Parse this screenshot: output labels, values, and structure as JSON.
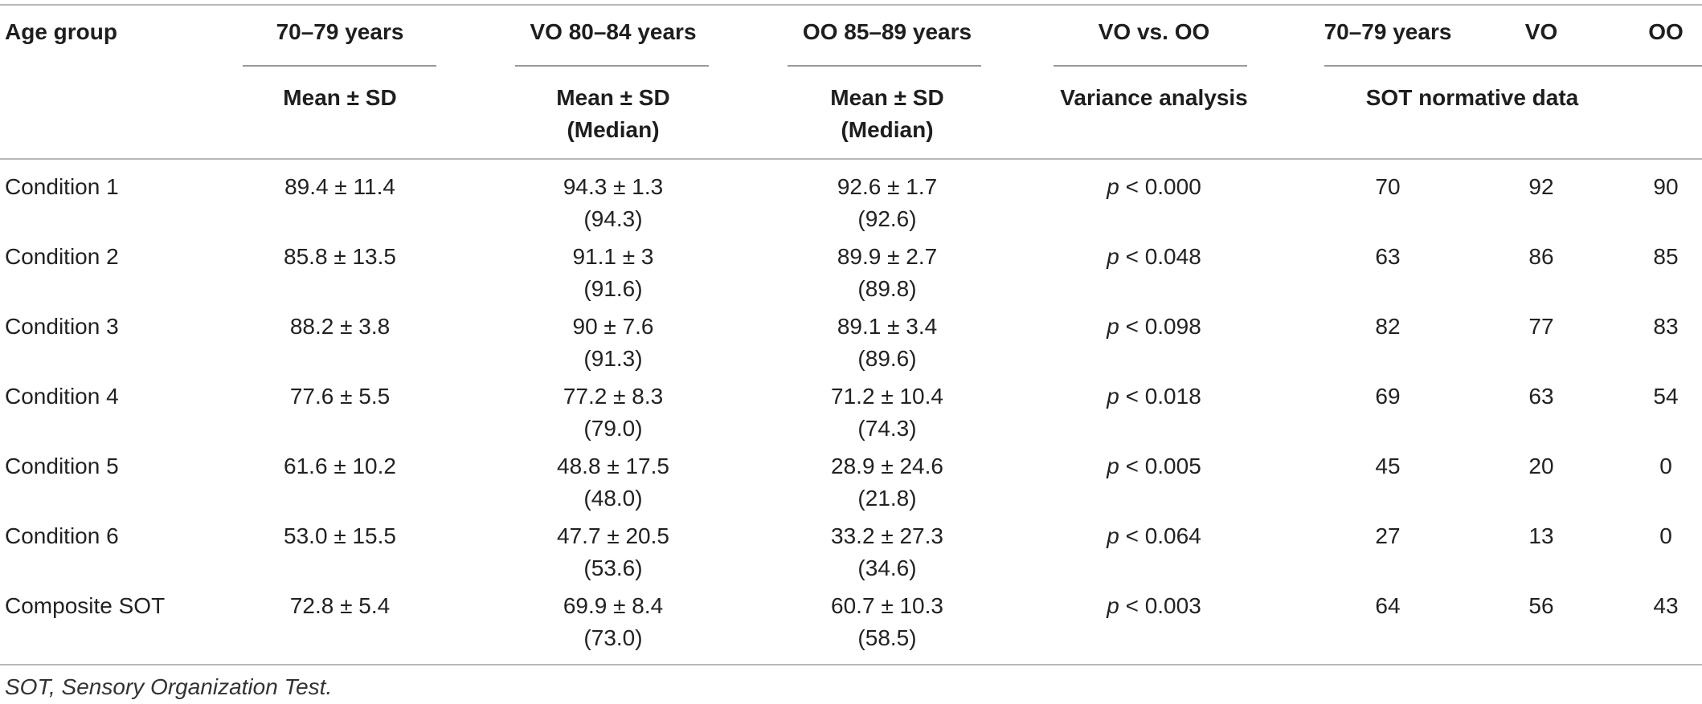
{
  "header": {
    "age_group": "Age group",
    "col1": "70–79 years",
    "col2": "VO 80–84 years",
    "col3": "OO 85–89 years",
    "col4": "VO vs. OO",
    "col5": "70–79 years",
    "col6": "VO",
    "col7": "OO",
    "sub1": "Mean ± SD",
    "sub2a": "Mean ± SD",
    "sub2b": "(Median)",
    "sub3a": "Mean ± SD",
    "sub3b": "(Median)",
    "sub4": "Variance analysis",
    "sub5": "SOT normative data"
  },
  "rows": [
    {
      "label": "Condition 1",
      "m70": "89.4 ± 11.4",
      "vo": "94.3 ± 1.3",
      "vo_med": "(94.3)",
      "oo": "92.6 ± 1.7",
      "oo_med": "(92.6)",
      "p_sym": "p",
      "p_val": " < 0.000",
      "n70": "70",
      "nvo": "92",
      "noo": "90"
    },
    {
      "label": "Condition 2",
      "m70": "85.8 ± 13.5",
      "vo": "91.1 ± 3",
      "vo_med": "(91.6)",
      "oo": "89.9 ± 2.7",
      "oo_med": "(89.8)",
      "p_sym": "p",
      "p_val": " < 0.048",
      "n70": "63",
      "nvo": "86",
      "noo": "85"
    },
    {
      "label": "Condition 3",
      "m70": "88.2 ± 3.8",
      "vo": "90 ± 7.6",
      "vo_med": "(91.3)",
      "oo": "89.1 ± 3.4",
      "oo_med": "(89.6)",
      "p_sym": "p",
      "p_val": " < 0.098",
      "n70": "82",
      "nvo": "77",
      "noo": "83"
    },
    {
      "label": "Condition 4",
      "m70": "77.6 ± 5.5",
      "vo": "77.2 ± 8.3",
      "vo_med": "(79.0)",
      "oo": "71.2 ± 10.4",
      "oo_med": "(74.3)",
      "p_sym": "p",
      "p_val": " < 0.018",
      "n70": "69",
      "nvo": "63",
      "noo": "54"
    },
    {
      "label": "Condition 5",
      "m70": "61.6 ± 10.2",
      "vo": "48.8 ± 17.5",
      "vo_med": "(48.0)",
      "oo": "28.9 ± 24.6",
      "oo_med": "(21.8)",
      "p_sym": "p",
      "p_val": " < 0.005",
      "n70": "45",
      "nvo": "20",
      "noo": "0"
    },
    {
      "label": "Condition 6",
      "m70": "53.0 ± 15.5",
      "vo": "47.7 ± 20.5",
      "vo_med": "(53.6)",
      "oo": "33.2 ± 27.3",
      "oo_med": "(34.6)",
      "p_sym": "p",
      "p_val": " < 0.064",
      "n70": "27",
      "nvo": "13",
      "noo": "0"
    },
    {
      "label": "Composite SOT",
      "m70": "72.8 ± 5.4",
      "vo": "69.9 ± 8.4",
      "vo_med": "(73.0)",
      "oo": "60.7 ± 10.3",
      "oo_med": "(58.5)",
      "p_sym": "p",
      "p_val": " < 0.003",
      "n70": "64",
      "nvo": "56",
      "noo": "43"
    }
  ],
  "footnote": "SOT, Sensory Organization Test."
}
